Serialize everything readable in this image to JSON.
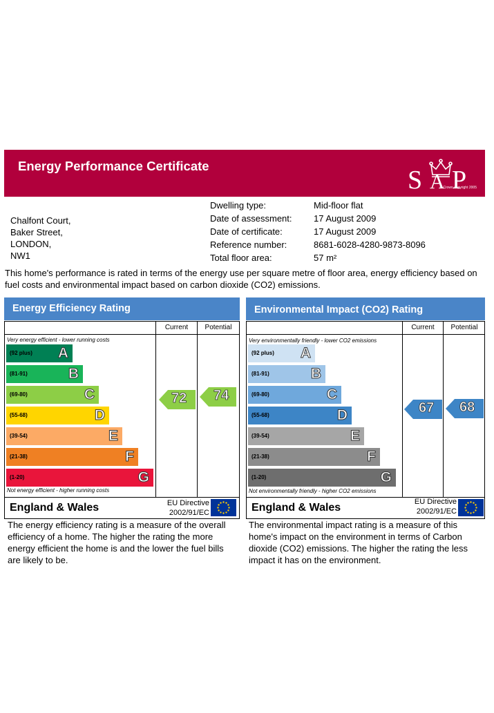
{
  "header": {
    "title": "Energy Performance Certificate",
    "logo_text": "SAP",
    "logo_copyright": "© Crown copyright 2005",
    "background": "#b1003c"
  },
  "address": [
    "Chalfont Court,",
    "Baker Street,",
    "LONDON,",
    "NW1"
  ],
  "details": [
    {
      "label": "Dwelling type:",
      "value": "Mid-floor flat"
    },
    {
      "label": "Date of assessment:",
      "value": "17 August 2009"
    },
    {
      "label": "Date of certificate:",
      "value": "17 August 2009"
    },
    {
      "label": "Reference number:",
      "value": "8681-6028-4280-9873-8096"
    },
    {
      "label": "Total floor area:",
      "value": "57 m²"
    }
  ],
  "intro": "This home's performance is rated in terms of the energy use per square metre of floor area, energy efficiency based on fuel costs and environmental impact based on carbon dioxide (CO2) emissions.",
  "columns": {
    "current": "Current",
    "potential": "Potential"
  },
  "energy": {
    "title": "Energy Efficiency Rating",
    "top_note": "Very energy efficient - lower running costs",
    "bottom_note": "Not energy efficient - higher running costs",
    "bands": [
      {
        "range": "(92 plus)",
        "letter": "A",
        "color": "#008054"
      },
      {
        "range": "(81-91)",
        "letter": "B",
        "color": "#19b459"
      },
      {
        "range": "(69-80)",
        "letter": "C",
        "color": "#8dce46"
      },
      {
        "range": "(55-68)",
        "letter": "D",
        "color": "#ffd500"
      },
      {
        "range": "(39-54)",
        "letter": "E",
        "color": "#fcaa65"
      },
      {
        "range": "(21-38)",
        "letter": "F",
        "color": "#ef8023"
      },
      {
        "range": "(1-20)",
        "letter": "G",
        "color": "#e9153b"
      }
    ],
    "current": "72",
    "potential": "74",
    "arrow_color": "#8dce46",
    "description": "The energy efficiency rating is a measure of the overall efficiency of a home. The higher the rating the more energy efficient the home is and the lower the fuel bills are likely to be."
  },
  "environment": {
    "title": "Environmental Impact (CO2) Rating",
    "top_note": "Very environmentally friendly - lower CO2 emissions",
    "bottom_note": "Not environmentally friendly - higher CO2 emissions",
    "bands": [
      {
        "range": "(92 plus)",
        "letter": "A",
        "color": "#cfe2f3"
      },
      {
        "range": "(81-91)",
        "letter": "B",
        "color": "#9fc5e8"
      },
      {
        "range": "(69-80)",
        "letter": "C",
        "color": "#6fa8dc"
      },
      {
        "range": "(55-68)",
        "letter": "D",
        "color": "#3d85c6"
      },
      {
        "range": "(39-54)",
        "letter": "E",
        "color": "#a6a6a6"
      },
      {
        "range": "(21-38)",
        "letter": "F",
        "color": "#8c8c8c"
      },
      {
        "range": "(1-20)",
        "letter": "G",
        "color": "#6e6e6e"
      }
    ],
    "current": "67",
    "potential": "68",
    "arrow_color": "#3d85c6",
    "description": "The environmental impact rating is a measure of this home's impact on the environment in terms of Carbon dioxide (CO2) emissions. The higher the rating the less impact it has on the environment."
  },
  "footer": {
    "region": "England & Wales",
    "directive_line1": "EU Directive",
    "directive_line2": "2002/91/EC"
  }
}
